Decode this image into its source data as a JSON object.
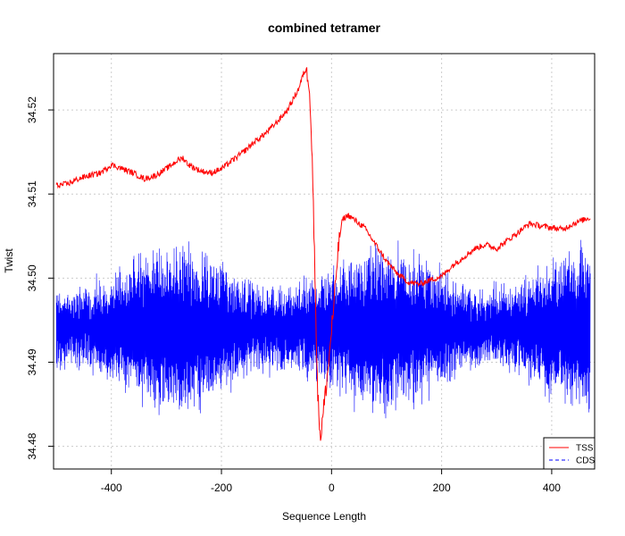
{
  "chart_data": {
    "type": "line",
    "title": "combined tetramer",
    "xlabel": "Sequence Length",
    "ylabel": "Twist",
    "xlim": [
      -505,
      478
    ],
    "ylim": [
      34.4773,
      34.5267
    ],
    "x_ticks": [
      -400,
      -200,
      0,
      200,
      400
    ],
    "y_ticks": [
      34.48,
      34.49,
      34.5,
      34.51,
      34.52
    ],
    "y_tick_labels": [
      "34.48",
      "34.49",
      "34.50",
      "34.51",
      "34.52"
    ],
    "x_range": [
      -500,
      470
    ],
    "grid": true,
    "legend_position": "bottom-right",
    "series": [
      {
        "name": "TSS",
        "color": "#ff0000",
        "line_style": "solid",
        "x": [
          -500,
          -480,
          -460,
          -440,
          -420,
          -400,
          -380,
          -360,
          -340,
          -320,
          -300,
          -280,
          -270,
          -260,
          -240,
          -220,
          -200,
          -180,
          -160,
          -140,
          -120,
          -100,
          -80,
          -60,
          -50,
          -45,
          -40,
          -35,
          -30,
          -25,
          -20,
          -15,
          -10,
          -5,
          0,
          5,
          10,
          15,
          20,
          30,
          40,
          60,
          80,
          100,
          120,
          140,
          160,
          180,
          200,
          220,
          240,
          260,
          280,
          300,
          320,
          340,
          360,
          380,
          400,
          420,
          440,
          460,
          470
        ],
        "y": [
          34.511,
          34.5112,
          34.5118,
          34.5122,
          34.5125,
          34.5135,
          34.513,
          34.5125,
          34.5118,
          34.5122,
          34.513,
          34.514,
          34.5143,
          34.5135,
          34.5128,
          34.5125,
          34.513,
          34.514,
          34.515,
          34.5162,
          34.5172,
          34.5185,
          34.52,
          34.5225,
          34.5245,
          34.5248,
          34.523,
          34.514,
          34.5,
          34.486,
          34.481,
          34.484,
          34.487,
          34.49,
          34.494,
          34.497,
          34.502,
          34.505,
          34.507,
          34.5075,
          34.507,
          34.506,
          34.504,
          34.502,
          34.5005,
          34.4995,
          34.4993,
          34.4998,
          34.5002,
          34.5015,
          34.5025,
          34.5035,
          34.504,
          34.5035,
          34.5045,
          34.5055,
          34.5065,
          34.5062,
          34.506,
          34.5058,
          34.5065,
          34.507,
          34.5072
        ]
      },
      {
        "name": "CDS",
        "color": "#0000ff",
        "line_style": "dashed",
        "center": 34.494,
        "amplitude": 0.0105,
        "x_range": [
          -500,
          470
        ]
      }
    ],
    "legend": [
      {
        "label": "TSS",
        "color": "#ff0000",
        "style": "solid"
      },
      {
        "label": "CDS",
        "color": "#0000ff",
        "style": "dashed"
      }
    ]
  }
}
